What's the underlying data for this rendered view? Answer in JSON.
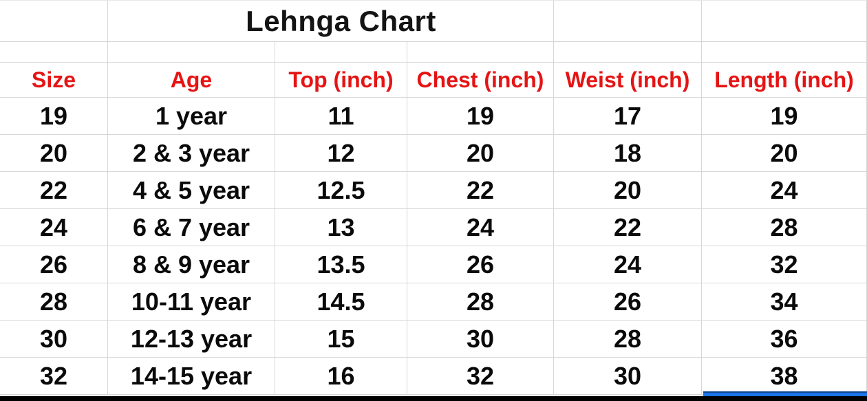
{
  "chart_data": {
    "type": "table",
    "title": "Lehnga Chart",
    "columns": [
      "Size",
      "Age",
      "Top (inch)",
      "Chest (inch)",
      "Weist (inch)",
      "Length (inch)"
    ],
    "rows": [
      [
        "19",
        "1 year",
        "11",
        "19",
        "17",
        "19"
      ],
      [
        "20",
        "2 & 3 year",
        "12",
        "20",
        "18",
        "20"
      ],
      [
        "22",
        "4 & 5 year",
        "12.5",
        "22",
        "20",
        "24"
      ],
      [
        "24",
        "6 & 7 year",
        "13",
        "24",
        "22",
        "28"
      ],
      [
        "26",
        "8 & 9 year",
        "13.5",
        "26",
        "24",
        "32"
      ],
      [
        "28",
        "10-11 year",
        "14.5",
        "28",
        "26",
        "34"
      ],
      [
        "30",
        "12-13 year",
        "15",
        "30",
        "28",
        "36"
      ],
      [
        "32",
        "14-15 year",
        "16",
        "32",
        "30",
        "38"
      ]
    ]
  },
  "colors": {
    "header_text": "#e51414",
    "body_text": "#0a0a0a",
    "gridline": "#d5d7da",
    "selection_bar_blue": "#1a73e8",
    "bottom_bar_black": "#000000",
    "background": "#ffffff"
  }
}
